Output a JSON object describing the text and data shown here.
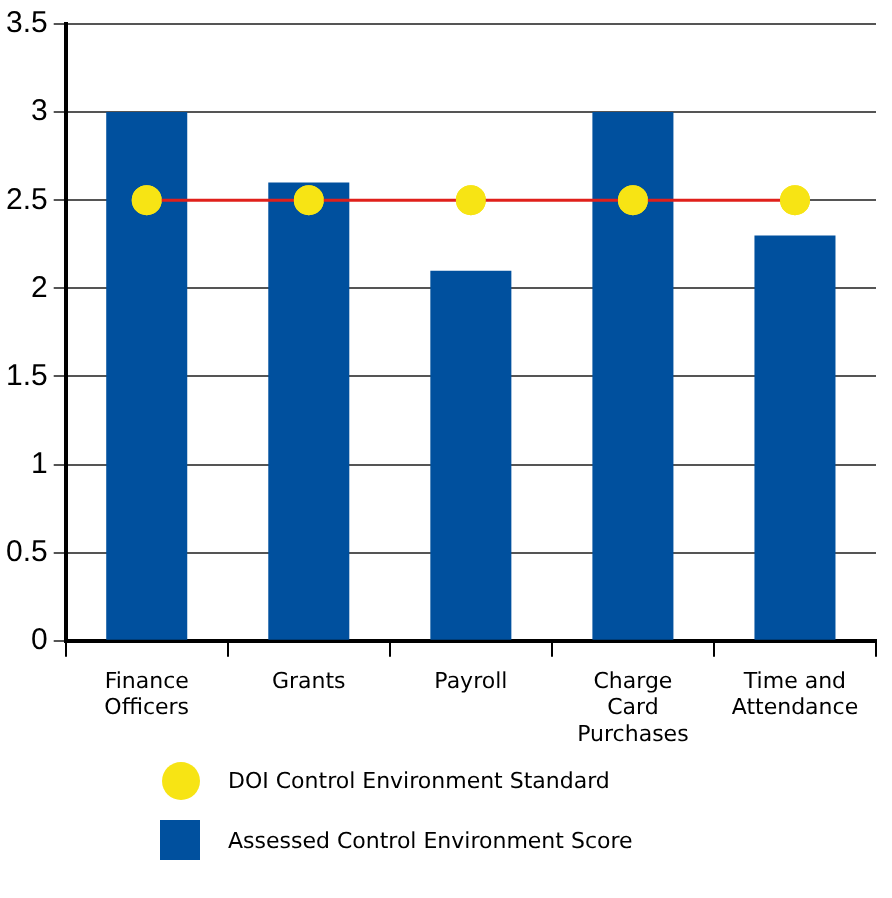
{
  "chart_data": {
    "type": "bar",
    "categories": [
      "Finance Officers",
      "Grants",
      "Payroll",
      "Charge Card Purchases",
      "Time and Attendance"
    ],
    "series": [
      {
        "type": "scatter",
        "name": "DOI Control Environment Standard",
        "color": "#f7e414",
        "x": [
          "Finance Officers",
          "Grants",
          "Payroll",
          "Charge Card Purchases",
          "Time and Attendance"
        ],
        "values": [
          2.5,
          2.5,
          2.5,
          2.5,
          2.5
        ]
      },
      {
        "name": "Assessed Control Environment Score",
        "color": "#00509e",
        "values": [
          3,
          2.6,
          2.1,
          3,
          2.3
        ]
      }
    ],
    "ref_lines": [
      {
        "axis": "y",
        "value": 2.5,
        "color": "#e0201b"
      }
    ],
    "ylim": [
      0,
      3.5
    ],
    "yticks": [
      0,
      0.5,
      1,
      1.5,
      2,
      2.5,
      3,
      3.5
    ],
    "grid": "y",
    "legend": "bottom",
    "marker": "circle"
  }
}
